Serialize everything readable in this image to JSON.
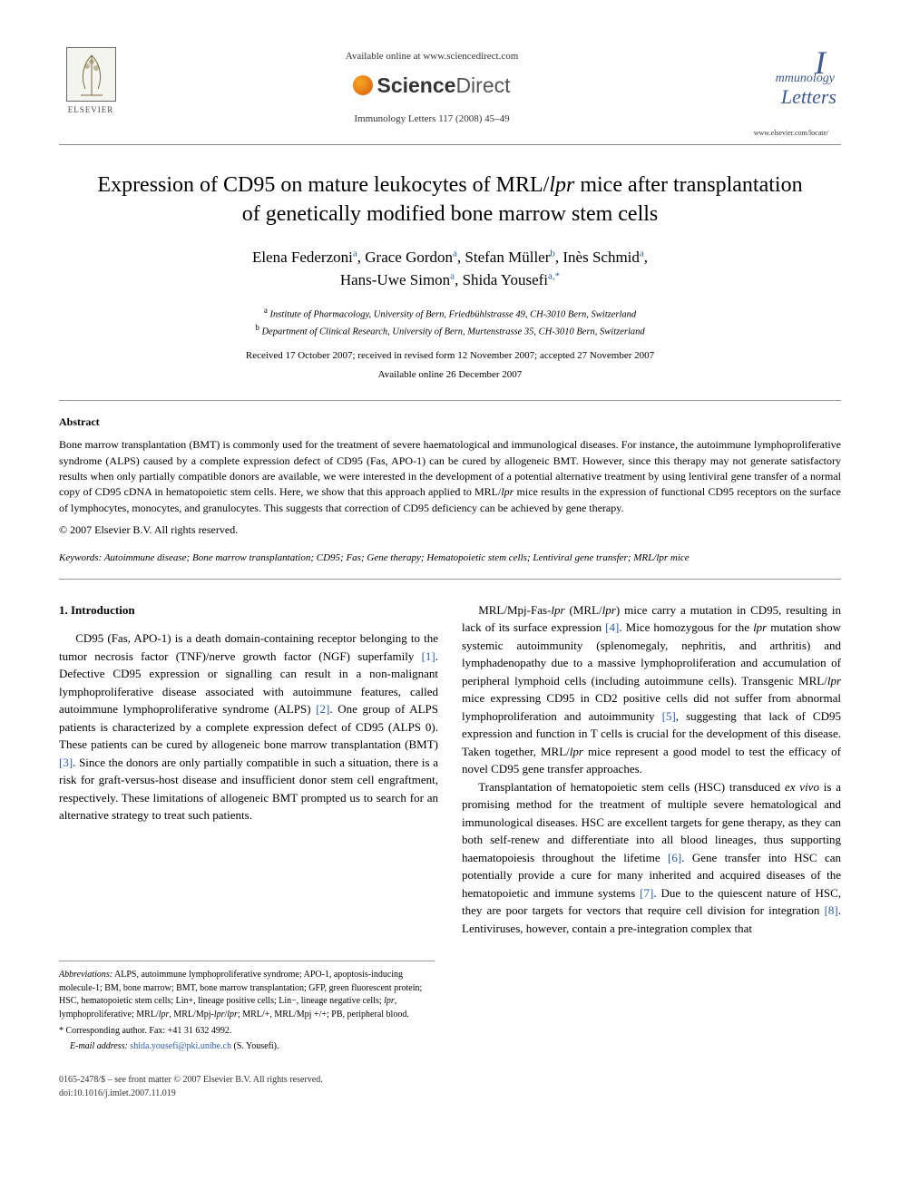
{
  "header": {
    "available_line": "Available online at www.sciencedirect.com",
    "sd_brand_bold": "Science",
    "sd_brand_rest": "Direct",
    "journal_line": "Immunology Letters 117 (2008) 45–49",
    "journal_name_i": "I",
    "journal_name_m": "mmunology",
    "journal_name_l": "Letters",
    "journal_url": "www.elsevier.com/locate/",
    "elsevier_label": "ELSEVIER"
  },
  "title_html": "Expression of CD95 on mature leukocytes of MRL/<em>lpr</em> mice after transplantation of genetically modified bone marrow stem cells",
  "authors": [
    {
      "name": "Elena Federzoni",
      "aff": "a"
    },
    {
      "name": "Grace Gordon",
      "aff": "a"
    },
    {
      "name": "Stefan Müller",
      "aff": "b"
    },
    {
      "name": "Inès Schmid",
      "aff": "a"
    },
    {
      "name": "Hans-Uwe Simon",
      "aff": "a"
    },
    {
      "name": "Shida Yousefi",
      "aff": "a",
      "corresponding": true
    }
  ],
  "affiliations": {
    "a": "Institute of Pharmacology, University of Bern, Friedbühlstrasse 49, CH-3010 Bern, Switzerland",
    "b": "Department of Clinical Research, University of Bern, Murtenstrasse 35, CH-3010 Bern, Switzerland"
  },
  "dates": "Received 17 October 2007; received in revised form 12 November 2007; accepted 27 November 2007",
  "available_online": "Available online 26 December 2007",
  "abstract": {
    "heading": "Abstract",
    "body": "Bone marrow transplantation (BMT) is commonly used for the treatment of severe haematological and immunological diseases. For instance, the autoimmune lymphoproliferative syndrome (ALPS) caused by a complete expression defect of CD95 (Fas, APO-1) can be cured by allogeneic BMT. However, since this therapy may not generate satisfactory results when only partially compatible donors are available, we were interested in the development of a potential alternative treatment by using lentiviral gene transfer of a normal copy of CD95 cDNA in hematopoietic stem cells. Here, we show that this approach applied to MRL/lpr mice results in the expression of functional CD95 receptors on the surface of lymphocytes, monocytes, and granulocytes. This suggests that correction of CD95 deficiency can be achieved by gene therapy.",
    "copyright": "© 2007 Elsevier B.V. All rights reserved."
  },
  "keywords": {
    "label": "Keywords:",
    "list": "Autoimmune disease; Bone marrow transplantation; CD95; Fas; Gene therapy; Hematopoietic stem cells; Lentiviral gene transfer; MRL/lpr mice"
  },
  "section1": {
    "heading": "1. Introduction",
    "para1_a": "CD95 (Fas, APO-1) is a death domain-containing receptor belonging to the tumor necrosis factor (TNF)/nerve growth factor (NGF) superfamily ",
    "cite1": "[1]",
    "para1_b": ". Defective CD95 expression or signalling can result in a non-malignant lymphoproliferative disease associated with autoimmune features, called autoimmune lymphoproliferative syndrome (ALPS) ",
    "cite2": "[2]",
    "para1_c": ". One group of ALPS patients is characterized by a complete expression defect of CD95 (ALPS 0). These patients can be cured by allogeneic bone marrow transplantation (BMT) ",
    "cite3": "[3]",
    "para1_d": ". Since the donors are only partially compatible in such a situation, there is a risk for graft-versus-host disease and insufficient donor stem cell engraftment, respectively. These limitations of allogeneic BMT prompted us to search for an alternative strategy to treat such patients.",
    "para2_a": "MRL/Mpj-Fas-",
    "para2_lpr": "lpr",
    "para2_b": " (MRL/",
    "para2_lpr2": "lpr",
    "para2_c": ") mice carry a mutation in CD95, resulting in lack of its surface expression ",
    "cite4": "[4]",
    "para2_d": ". Mice homozygous for the ",
    "para2_lpr3": "lpr",
    "para2_e": " mutation show systemic autoimmunity (splenomegaly, nephritis, and arthritis) and lymphadenopathy due to a massive lymphoproliferation and accumulation of peripheral lymphoid cells (including autoimmune cells). Transgenic MRL/",
    "para2_lpr4": "lpr",
    "para2_f": " mice expressing CD95 in CD2 positive cells did not suffer from abnormal lymphoproliferation and autoimmunity ",
    "cite5": "[5]",
    "para2_g": ", suggesting that lack of CD95 expression and function in T cells is crucial for the development of this disease. Taken together, MRL/",
    "para2_lpr5": "lpr",
    "para2_h": " mice represent a good model to test the efficacy of novel CD95 gene transfer approaches.",
    "para3_a": "Transplantation of hematopoietic stem cells (HSC) transduced ",
    "para3_ex": "ex vivo",
    "para3_b": " is a promising method for the treatment of multiple severe hematological and immunological diseases. HSC are excellent targets for gene therapy, as they can both self-renew and differentiate into all blood lineages, thus supporting haematopoiesis throughout the lifetime ",
    "cite6": "[6]",
    "para3_c": ". Gene transfer into HSC can potentially provide a cure for many inherited and acquired diseases of the hematopoietic and immune systems ",
    "cite7": "[7]",
    "para3_d": ". Due to the quiescent nature of HSC, they are poor targets for vectors that require cell division for integration ",
    "cite8": "[8]",
    "para3_e": ". Lentiviruses, however, contain a pre-integration complex that"
  },
  "footnotes": {
    "abbrev_label": "Abbreviations:",
    "abbrev": " ALPS, autoimmune lymphoproliferative syndrome; APO-1, apoptosis-inducing molecule-1; BM, bone marrow; BMT, bone marrow transplantation; GFP, green fluorescent protein; HSC, hematopoietic stem cells; Lin+, lineage positive cells; Lin−, lineage negative cells; lpr, lymphoproliferative; MRL/lpr, MRL/Mpj-lpr/lpr; MRL/+, MRL/Mpj +/+; PB, peripheral blood.",
    "corr_label": "* Corresponding author. Fax: +41 31 632 4992.",
    "email_label": "E-mail address:",
    "email": "shida.yousefi@pki.unibe.ch",
    "email_suffix": " (S. Yousefi)."
  },
  "footer": {
    "left1": "0165-2478/$ – see front matter © 2007 Elsevier B.V. All rights reserved.",
    "left2": "doi:10.1016/j.imlet.2007.11.019"
  },
  "colors": {
    "link": "#2a5db0",
    "text": "#000000",
    "rule": "#999999"
  }
}
